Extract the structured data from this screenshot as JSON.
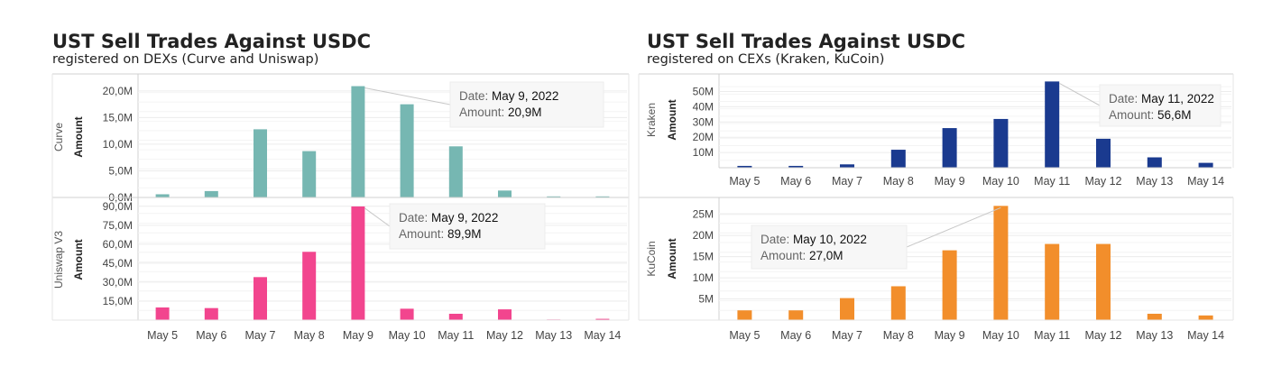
{
  "chart_data": [
    {
      "type": "bar",
      "title": "UST Sell Trades Against USDC",
      "subtitle": "registered on DEXs (Curve and Uniswap)",
      "categories": [
        "May 5",
        "May 6",
        "May 7",
        "May 8",
        "May 9",
        "May 10",
        "May 11",
        "May 12",
        "May 13",
        "May 14"
      ],
      "panels": [
        {
          "row_label": "Curve",
          "ylabel": "Amount",
          "color": "#76b7b2",
          "ylim": [
            0,
            21.5
          ],
          "ticks": [
            0,
            5,
            10,
            15,
            20
          ],
          "tick_labels": [
            "0,0M",
            "5,0M",
            "10,0M",
            "15,0M",
            "20,0M"
          ],
          "values": [
            0.6,
            1.2,
            12.8,
            8.7,
            20.9,
            17.5,
            9.6,
            1.3,
            0.2,
            0.2
          ],
          "tooltip": {
            "date_label": "Date:",
            "date": "May 9, 2022",
            "amount_label": "Amount:",
            "amount": "20,9M",
            "index": 4
          }
        },
        {
          "row_label": "Uniswap V3",
          "ylabel": "Amount",
          "color": "#f2458e",
          "ylim": [
            0,
            92
          ],
          "ticks": [
            15,
            30,
            45,
            60,
            75,
            90
          ],
          "tick_labels": [
            "15,0M",
            "30,0M",
            "45,0M",
            "60,0M",
            "75,0M",
            "90,0M"
          ],
          "values": [
            10,
            9.5,
            34,
            54,
            89.9,
            9,
            5,
            8.5,
            0.5,
            1
          ],
          "tooltip": {
            "date_label": "Date:",
            "date": "May 9, 2022",
            "amount_label": "Amount:",
            "amount": "89,9M",
            "index": 4
          }
        }
      ]
    },
    {
      "type": "bar",
      "title": "UST Sell Trades Against USDC",
      "subtitle": "registered on CEXs (Kraken, KuCoin)",
      "categories": [
        "May 5",
        "May 6",
        "May 7",
        "May 8",
        "May 9",
        "May 10",
        "May 11",
        "May 12",
        "May 13",
        "May 14"
      ],
      "panels": [
        {
          "row_label": "Kraken",
          "ylabel": "Amount",
          "color": "#1a3a8f",
          "ylim": [
            0,
            58
          ],
          "ticks": [
            10,
            20,
            30,
            40,
            50
          ],
          "tick_labels": [
            "10M",
            "20M",
            "30M",
            "40M",
            "50M"
          ],
          "values": [
            1.2,
            1.2,
            2.2,
            11.8,
            26,
            32,
            56.6,
            19,
            6.8,
            3.2
          ],
          "tooltip": {
            "date_label": "Date:",
            "date": "May 11, 2022",
            "amount_label": "Amount:",
            "amount": "56,6M",
            "index": 6
          }
        },
        {
          "row_label": "KuCoin",
          "ylabel": "Amount",
          "color": "#f28e2b",
          "ylim": [
            0,
            27.5
          ],
          "ticks": [
            5,
            10,
            15,
            20,
            25
          ],
          "tick_labels": [
            "5M",
            "10M",
            "15M",
            "20M",
            "25M"
          ],
          "values": [
            2.3,
            2.3,
            5.2,
            8,
            16.5,
            27,
            18,
            18,
            1.5,
            1.1
          ],
          "tooltip": {
            "date_label": "Date:",
            "date": "May 10, 2022",
            "amount_label": "Amount:",
            "amount": "27,0M",
            "index": 5
          }
        }
      ]
    }
  ]
}
